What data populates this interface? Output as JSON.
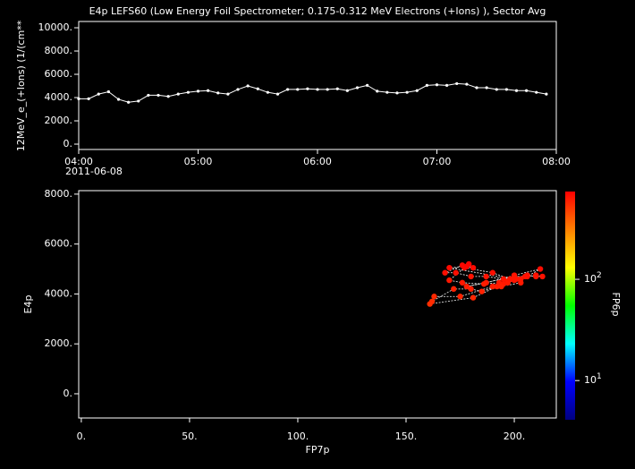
{
  "chart_data": [
    {
      "type": "line",
      "title": "E4p LEFS60 (Low Energy Foil Spectrometer; 0.175-0.312 MeV Electrons (+Ions) ), Sector Avg",
      "y_label": "12MeV_e_(+Ions) (1/(cm**",
      "date_label": "2011-06-08",
      "color": "#ffffff",
      "x": [
        "2011-06-08T04:00",
        "2011-06-08T04:05",
        "2011-06-08T04:10",
        "2011-06-08T04:15",
        "2011-06-08T04:20",
        "2011-06-08T04:25",
        "2011-06-08T04:30",
        "2011-06-08T04:35",
        "2011-06-08T04:40",
        "2011-06-08T04:45",
        "2011-06-08T04:50",
        "2011-06-08T04:55",
        "2011-06-08T05:00",
        "2011-06-08T05:05",
        "2011-06-08T05:10",
        "2011-06-08T05:15",
        "2011-06-08T05:20",
        "2011-06-08T05:25",
        "2011-06-08T05:30",
        "2011-06-08T05:35",
        "2011-06-08T05:40",
        "2011-06-08T05:45",
        "2011-06-08T05:50",
        "2011-06-08T05:55",
        "2011-06-08T06:00",
        "2011-06-08T06:05",
        "2011-06-08T06:10",
        "2011-06-08T06:15",
        "2011-06-08T06:20",
        "2011-06-08T06:25",
        "2011-06-08T06:30",
        "2011-06-08T06:35",
        "2011-06-08T06:40",
        "2011-06-08T06:45",
        "2011-06-08T06:50",
        "2011-06-08T06:55",
        "2011-06-08T07:00",
        "2011-06-08T07:05",
        "2011-06-08T07:10",
        "2011-06-08T07:15",
        "2011-06-08T07:20",
        "2011-06-08T07:25",
        "2011-06-08T07:30",
        "2011-06-08T07:35",
        "2011-06-08T07:40",
        "2011-06-08T07:45",
        "2011-06-08T07:50",
        "2011-06-08T07:55"
      ],
      "values": [
        3900,
        3900,
        4300,
        4500,
        3850,
        3600,
        3700,
        4200,
        4200,
        4100,
        4300,
        4450,
        4550,
        4600,
        4400,
        4300,
        4700,
        5000,
        4750,
        4450,
        4300,
        4700,
        4700,
        4750,
        4700,
        4700,
        4750,
        4600,
        4850,
        5050,
        4550,
        4450,
        4400,
        4450,
        4600,
        5050,
        5100,
        5050,
        5200,
        5150,
        4850,
        4850,
        4700,
        4700,
        4600,
        4600,
        4450,
        4300
      ],
      "xlim": [
        "2011-06-08T04:00",
        "2011-06-08T08:00"
      ],
      "xticks": [
        {
          "value": "2011-06-08T04:00",
          "label": "04:00"
        },
        {
          "value": "2011-06-08T05:00",
          "label": "05:00"
        },
        {
          "value": "2011-06-08T06:00",
          "label": "06:00"
        },
        {
          "value": "2011-06-08T07:00",
          "label": "07:00"
        },
        {
          "value": "2011-06-08T08:00",
          "label": "08:00"
        }
      ],
      "ylim": [
        -460,
        10540
      ],
      "yticks": [
        {
          "value": 0,
          "label": "0."
        },
        {
          "value": 2000,
          "label": "2000."
        },
        {
          "value": 4000,
          "label": "4000."
        },
        {
          "value": 6000,
          "label": "6000."
        },
        {
          "value": 8000,
          "label": "8000."
        },
        {
          "value": 10000,
          "label": "10000."
        }
      ]
    },
    {
      "type": "scatter",
      "x_label": "FP7p",
      "y_label": "E4p",
      "colorbar_label": "FP6p",
      "x": [
        163,
        175,
        190,
        197,
        181,
        161,
        162,
        172,
        180,
        185,
        192,
        197,
        200,
        203,
        195,
        190,
        206,
        212,
        200,
        187,
        178,
        200,
        205,
        210,
        213,
        210,
        206,
        198,
        190,
        177,
        170,
        176,
        186,
        193,
        199,
        170,
        178,
        181,
        179,
        176,
        168,
        173,
        180,
        187,
        195,
        201,
        203,
        194
      ],
      "values": [
        3900,
        3900,
        4300,
        4500,
        3850,
        3600,
        3700,
        4200,
        4200,
        4100,
        4300,
        4450,
        4550,
        4600,
        4400,
        4300,
        4700,
        5000,
        4750,
        4450,
        4300,
        4700,
        4700,
        4750,
        4700,
        4700,
        4750,
        4600,
        4850,
        5050,
        4550,
        4450,
        4400,
        4450,
        4600,
        5050,
        5100,
        5050,
        5200,
        5150,
        4850,
        4850,
        4700,
        4700,
        4600,
        4600,
        4450,
        4300
      ],
      "color_values": [
        560,
        580,
        600,
        620,
        570,
        540,
        550,
        590,
        600,
        590,
        610,
        620,
        630,
        640,
        620,
        610,
        650,
        680,
        650,
        620,
        600,
        640,
        650,
        660,
        650,
        650,
        660,
        640,
        670,
        690,
        630,
        620,
        610,
        620,
        640,
        690,
        700,
        690,
        710,
        700,
        670,
        670,
        650,
        650,
        640,
        640,
        620,
        600
      ],
      "xlim": [
        -1.2,
        219.4
      ],
      "xticks": [
        {
          "value": 0,
          "label": "0."
        },
        {
          "value": 50,
          "label": "50."
        },
        {
          "value": 100,
          "label": "100."
        },
        {
          "value": 150,
          "label": "150."
        },
        {
          "value": 200,
          "label": "200."
        }
      ],
      "ylim": [
        -970,
        8140
      ],
      "yticks": [
        {
          "value": 0,
          "label": "0."
        },
        {
          "value": 2000,
          "label": "2000."
        },
        {
          "value": 4000,
          "label": "4000."
        },
        {
          "value": 6000,
          "label": "6000."
        },
        {
          "value": 8000,
          "label": "8000."
        }
      ],
      "clim": [
        4.1,
        736
      ],
      "clog": true,
      "cticks": [
        {
          "value": 10,
          "label": "10^1"
        },
        {
          "value": 100,
          "label": "10^2"
        }
      ],
      "colormap": [
        "#000080",
        "#0000ff",
        "#00ffff",
        "#00ff00",
        "#ffff00",
        "#ff8000",
        "#ff0000"
      ],
      "line_color": "#ffffff"
    }
  ]
}
